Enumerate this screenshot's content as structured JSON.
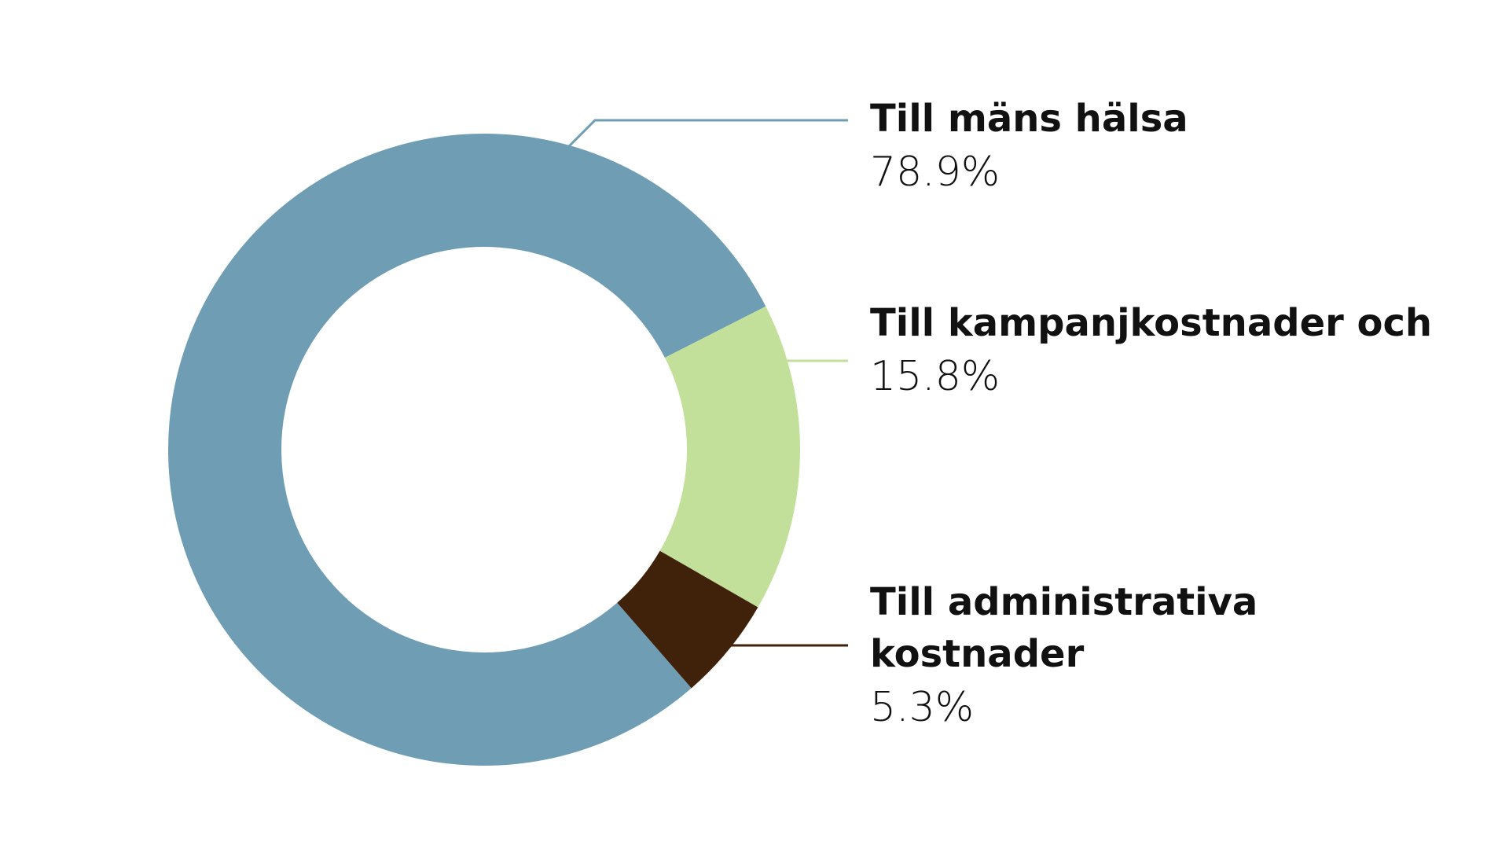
{
  "chart_data": {
    "type": "donut",
    "categories": [
      "Till mäns hälsa",
      "Till kampanjkostnader och",
      "Till administrativa kostnader"
    ],
    "values": [
      78.9,
      15.8,
      5.3
    ],
    "value_labels": [
      "78.9%",
      "15.8%",
      "5.3%"
    ],
    "colors": [
      "#6f9db3",
      "#c2e09a",
      "#40220a"
    ]
  }
}
